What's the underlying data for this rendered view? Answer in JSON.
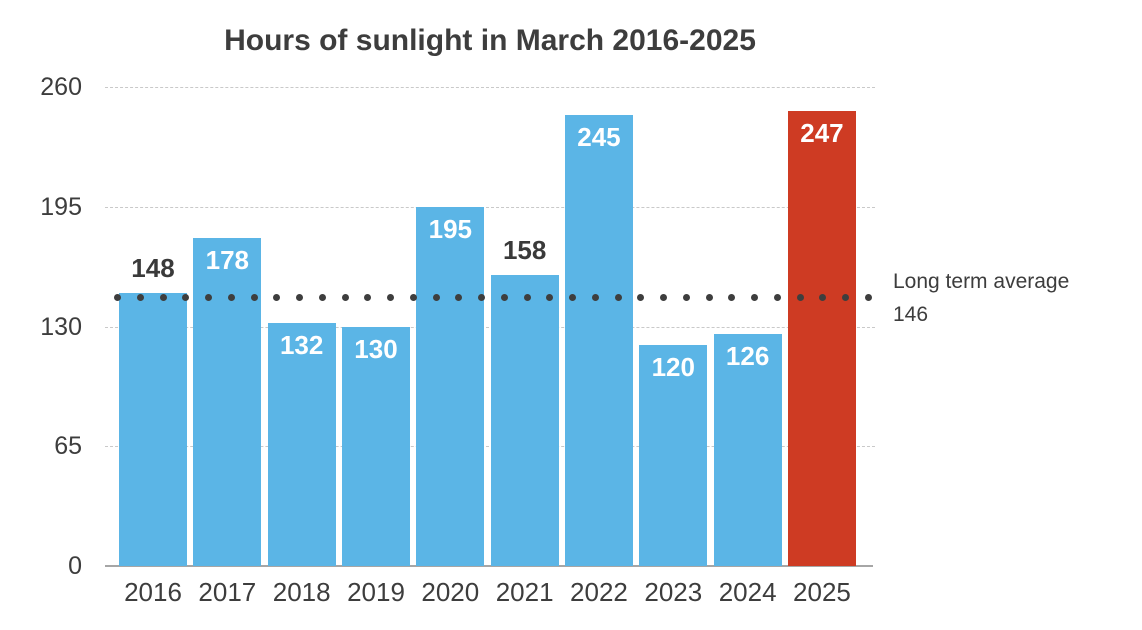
{
  "chart_data": {
    "type": "bar",
    "title": "Hours of sunlight in March 2016-2025",
    "categories": [
      "2016",
      "2017",
      "2018",
      "2019",
      "2020",
      "2021",
      "2022",
      "2023",
      "2024",
      "2025"
    ],
    "values": [
      148,
      178,
      132,
      130,
      195,
      158,
      245,
      120,
      126,
      247
    ],
    "xlabel": "",
    "ylabel": "",
    "ylim": [
      0,
      260
    ],
    "yticks": [
      260,
      195,
      130,
      65,
      0
    ],
    "grid": "horizontal-dashed",
    "legend": "none",
    "bar_color": "#5bb5e6",
    "highlight_index": 9,
    "highlight_color": "#ce3b23",
    "value_label_inside_color": "#ffffff",
    "value_label_outside_color": "#3a3a3a",
    "outside_label_indices": [
      0,
      5
    ],
    "reference_line": {
      "value": 146,
      "style": "dotted",
      "color": "#3e3e3e",
      "label_line1": "Long term average",
      "label_line2": "146"
    }
  }
}
